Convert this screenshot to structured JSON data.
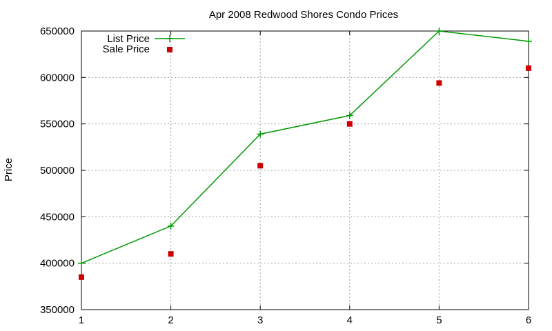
{
  "chart_data": {
    "type": "line",
    "title": "Apr 2008 Redwood Shores Condo Prices",
    "xlabel": "",
    "ylabel": "Price",
    "x": [
      1,
      2,
      3,
      4,
      5,
      6
    ],
    "xlim": [
      1,
      6
    ],
    "ylim": [
      350000,
      650000
    ],
    "xticks": [
      "1",
      "2",
      "3",
      "4",
      "5",
      "6"
    ],
    "yticks": [
      "350000",
      "400000",
      "450000",
      "500000",
      "550000",
      "600000",
      "650000"
    ],
    "grid": true,
    "legend_position": "top-left",
    "series": [
      {
        "name": "List Price",
        "style": "line-with-plus-markers",
        "color": "#009900",
        "x": [
          1,
          2,
          3,
          4,
          5,
          6
        ],
        "values": [
          400000,
          440000,
          539000,
          559000,
          650000,
          639000
        ]
      },
      {
        "name": "Sale Price",
        "style": "square-markers",
        "color": "#cc0000",
        "x": [
          1,
          2,
          3,
          4,
          5,
          6
        ],
        "values": [
          385000,
          410000,
          505000,
          550000,
          594000,
          610000
        ]
      }
    ]
  }
}
